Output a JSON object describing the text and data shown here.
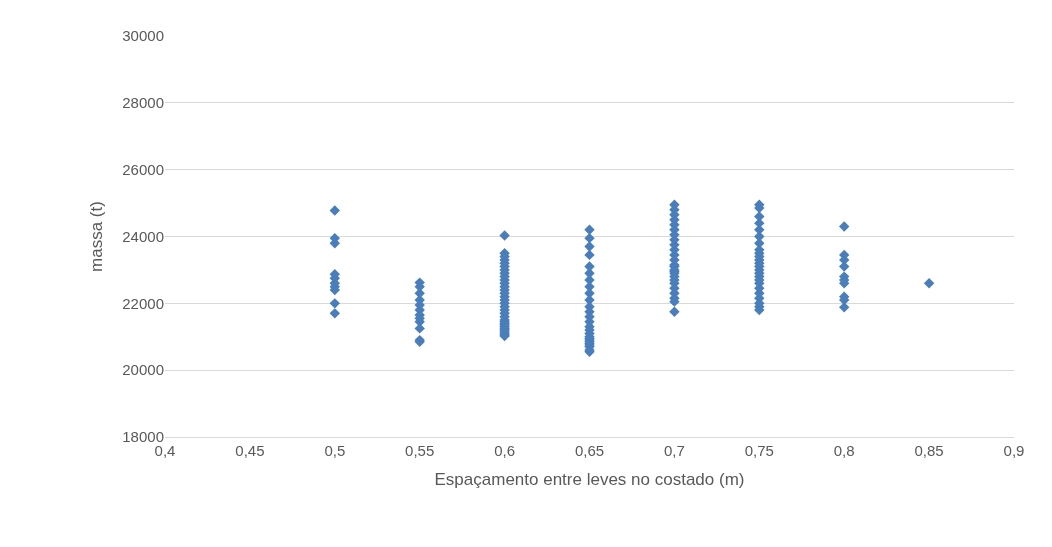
{
  "chart_data": {
    "type": "scatter",
    "xlabel": "Espaçamento entre leves no costado (m)",
    "ylabel": "massa (t)",
    "xlim": [
      0.4,
      0.9
    ],
    "xticks": [
      {
        "value": 0.4,
        "label": "0,4"
      },
      {
        "value": 0.45,
        "label": "0,45"
      },
      {
        "value": 0.5,
        "label": "0,5"
      },
      {
        "value": 0.55,
        "label": "0,55"
      },
      {
        "value": 0.6,
        "label": "0,6"
      },
      {
        "value": 0.65,
        "label": "0,65"
      },
      {
        "value": 0.7,
        "label": "0,7"
      },
      {
        "value": 0.75,
        "label": "0,75"
      },
      {
        "value": 0.8,
        "label": "0,8"
      },
      {
        "value": 0.85,
        "label": "0,85"
      },
      {
        "value": 0.9,
        "label": "0,9"
      }
    ],
    "ylim": [
      18000,
      30000
    ],
    "yticks": [
      18000,
      20000,
      22000,
      24000,
      26000,
      28000,
      30000
    ],
    "grid": "y",
    "marker": "diamond",
    "series": [
      {
        "color": "#4a7ebb",
        "x": [
          0.5,
          0.5,
          0.5,
          0.5,
          0.5,
          0.5,
          0.5,
          0.5,
          0.5,
          0.5,
          0.55,
          0.55,
          0.55,
          0.55,
          0.55,
          0.55,
          0.55,
          0.55,
          0.55,
          0.55,
          0.55,
          0.55,
          0.6,
          0.6,
          0.6,
          0.6,
          0.6,
          0.6,
          0.6,
          0.6,
          0.6,
          0.6,
          0.6,
          0.6,
          0.6,
          0.6,
          0.6,
          0.6,
          0.6,
          0.6,
          0.6,
          0.6,
          0.6,
          0.6,
          0.6,
          0.6,
          0.6,
          0.6,
          0.6,
          0.6,
          0.6,
          0.6,
          0.6,
          0.6,
          0.65,
          0.65,
          0.65,
          0.65,
          0.65,
          0.65,
          0.65,
          0.65,
          0.65,
          0.65,
          0.65,
          0.65,
          0.65,
          0.65,
          0.65,
          0.65,
          0.65,
          0.65,
          0.65,
          0.65,
          0.65,
          0.65,
          0.65,
          0.65,
          0.65,
          0.65,
          0.7,
          0.7,
          0.7,
          0.7,
          0.7,
          0.7,
          0.7,
          0.7,
          0.7,
          0.7,
          0.7,
          0.7,
          0.7,
          0.7,
          0.7,
          0.7,
          0.7,
          0.7,
          0.7,
          0.7,
          0.7,
          0.7,
          0.7,
          0.7,
          0.7,
          0.75,
          0.75,
          0.75,
          0.75,
          0.75,
          0.75,
          0.75,
          0.75,
          0.75,
          0.75,
          0.75,
          0.75,
          0.75,
          0.75,
          0.75,
          0.75,
          0.75,
          0.75,
          0.75,
          0.75,
          0.75,
          0.75,
          0.75,
          0.75,
          0.8,
          0.8,
          0.8,
          0.8,
          0.8,
          0.8,
          0.8,
          0.8,
          0.8,
          0.8,
          0.85
        ],
        "values": [
          24780,
          23950,
          23800,
          22870,
          22750,
          22600,
          22500,
          22400,
          22000,
          21700,
          22620,
          22500,
          22300,
          22100,
          21950,
          21800,
          21650,
          21550,
          21450,
          21250,
          20900,
          20850,
          24030,
          23500,
          23400,
          23300,
          23200,
          23100,
          23000,
          22900,
          22800,
          22700,
          22600,
          22500,
          22400,
          22300,
          22200,
          22100,
          22000,
          21900,
          21800,
          21700,
          21600,
          21500,
          21400,
          21300,
          21200,
          21100,
          21020,
          21050,
          21150,
          21250,
          21350,
          21450,
          24200,
          23950,
          23700,
          23450,
          23100,
          22900,
          22700,
          22500,
          22300,
          22100,
          21900,
          21750,
          21600,
          21450,
          21300,
          21200,
          21100,
          21000,
          20950,
          20900,
          20850,
          20800,
          20750,
          20700,
          20600,
          20550,
          24950,
          24800,
          24650,
          24500,
          24350,
          24200,
          24050,
          23900,
          23750,
          23600,
          23450,
          23300,
          23150,
          23000,
          22900,
          22800,
          22600,
          22450,
          22300,
          22150,
          22050,
          21750,
          22700,
          22950,
          23100,
          24950,
          24850,
          24600,
          24400,
          24200,
          24000,
          23800,
          23600,
          23500,
          23400,
          23300,
          23200,
          23100,
          23000,
          22900,
          22800,
          22700,
          22600,
          22450,
          22300,
          22150,
          22000,
          21900,
          21800,
          24300,
          23450,
          23300,
          23100,
          22800,
          22700,
          22600,
          22200,
          22100,
          21880,
          22600
        ]
      }
    ]
  }
}
